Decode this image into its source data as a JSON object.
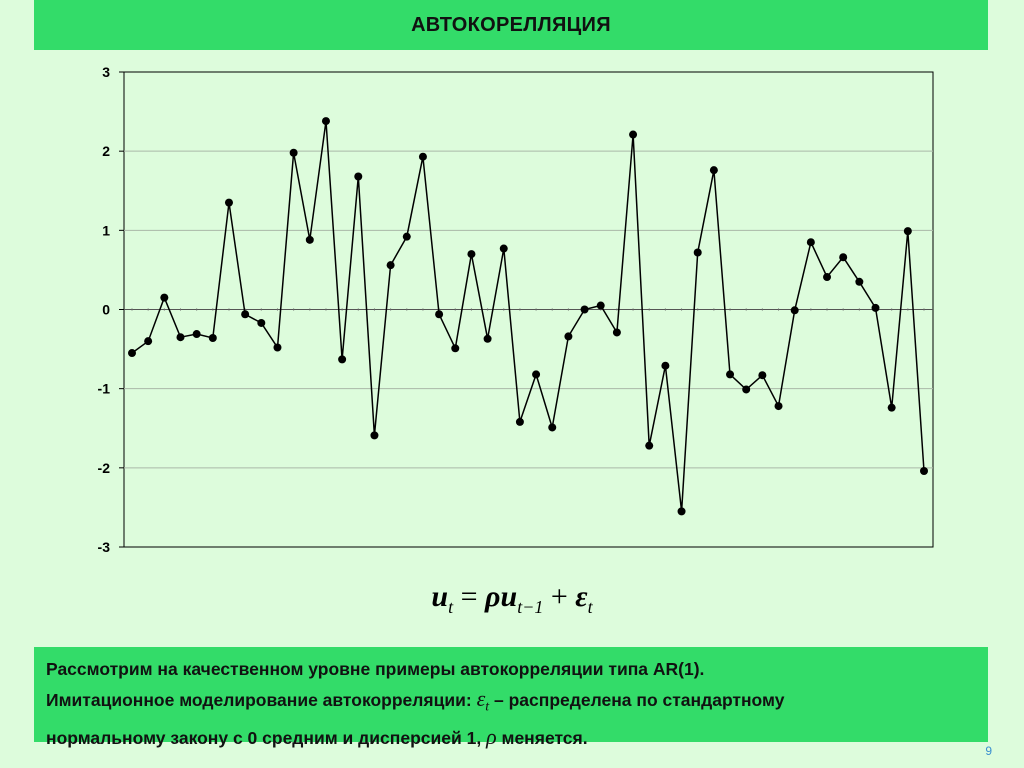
{
  "slide": {
    "title": "АВТОКОРЕЛЛЯЦИЯ",
    "formula": {
      "lhs": "u",
      "sub_t": "t",
      "equals": "=",
      "rho": "ρ",
      "u2": "u",
      "sub_t1": "t−1",
      "plus": "+",
      "eps": "ε",
      "sub_t2": "t"
    },
    "note": {
      "line1": "Рассмотрим на качественном уровне примеры автокорреляции типа AR(1).",
      "line2_pre": "Имитационное моделирование автокорреляции: ",
      "eps_symbol": "ε",
      "eps_sub": "t",
      "line2_post": " – распределена по стандартному",
      "line3_pre": "нормальному закону с 0 средним и дисперсией 1, ",
      "rho_symbol": "ρ",
      "line3_post": " меняется."
    },
    "page_number": "9"
  },
  "colors": {
    "title_bg": "#33dc69",
    "background": "#ddfcdc",
    "line": "#000000",
    "grid": "#aab8a8",
    "page_number": "#3a8fd0"
  },
  "chart_data": {
    "type": "line",
    "ylim": [
      -3,
      3
    ],
    "yticks": [
      "3",
      "2",
      "1",
      "0",
      "-1",
      "-2",
      "-3"
    ],
    "grid": true,
    "series": [
      {
        "values": [
          -0.55,
          -0.4,
          0.15,
          -0.35,
          -0.31,
          -0.36,
          1.35,
          -0.06,
          -0.17,
          -0.48,
          1.98,
          0.88,
          2.38,
          -0.63,
          1.68,
          -1.59,
          0.56,
          0.92,
          1.93,
          -0.06,
          -0.49,
          0.7,
          -0.37,
          0.77,
          -1.42,
          -0.82,
          -1.49,
          -0.34,
          0.0,
          0.05,
          -0.29,
          2.21,
          -1.72,
          -0.71,
          -2.55,
          0.72,
          1.76,
          -0.82,
          -1.01,
          -0.83,
          -1.22,
          -0.01,
          0.85,
          0.41,
          0.66,
          0.35,
          0.02,
          -1.24,
          0.99,
          -2.04
        ]
      }
    ]
  }
}
